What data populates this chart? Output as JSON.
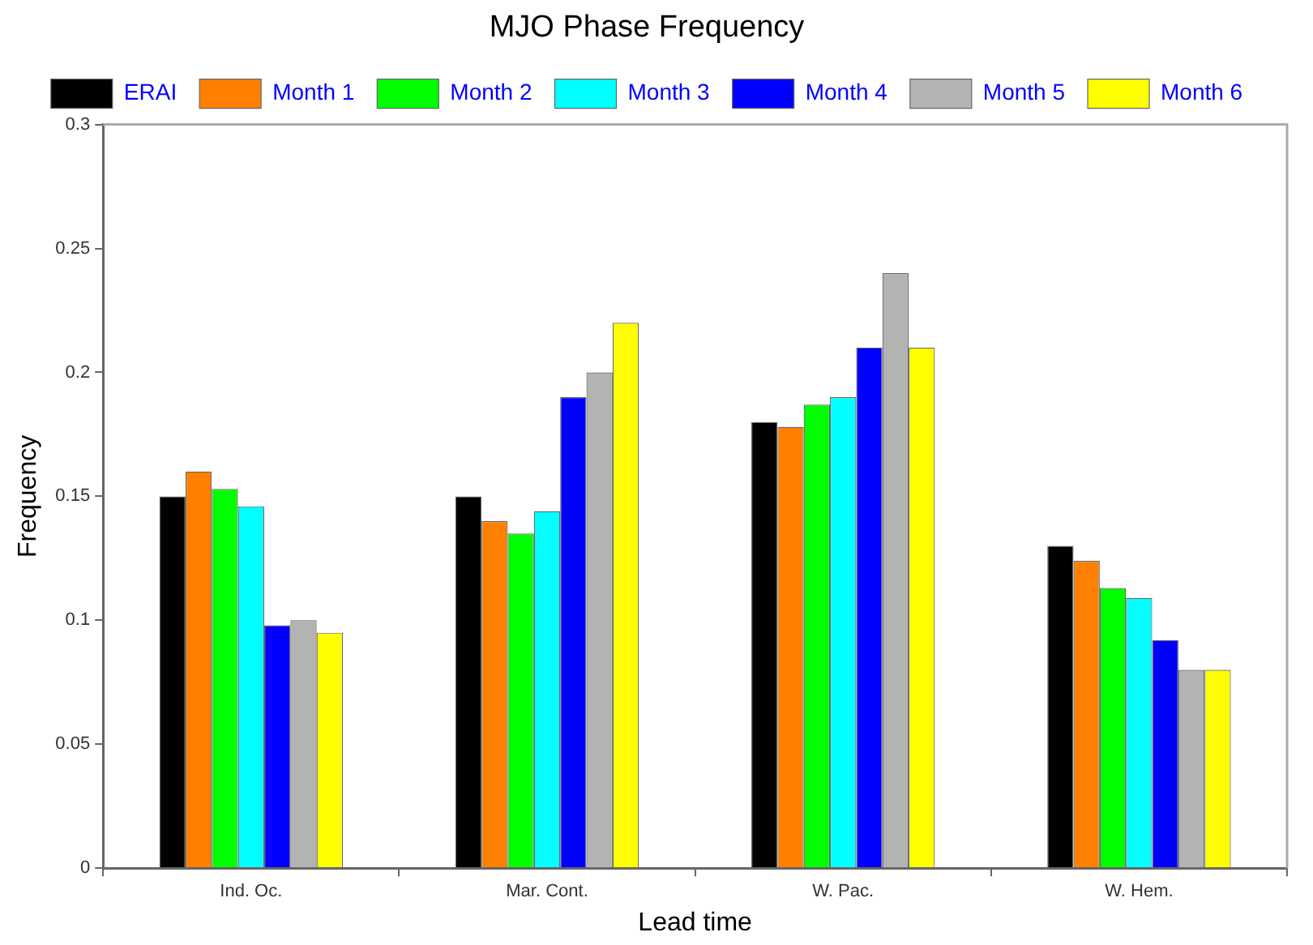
{
  "chart_data": {
    "type": "bar",
    "title": "MJO Phase Frequency",
    "xlabel": "Lead time",
    "ylabel": "Frequency",
    "categories": [
      "Ind. Oc.",
      "Mar. Cont.",
      "W. Pac.",
      "W. Hem."
    ],
    "series": [
      {
        "name": "ERAI",
        "color": "#000000",
        "values": [
          0.15,
          0.15,
          0.18,
          0.13
        ]
      },
      {
        "name": "Month 1",
        "color": "#ff8000",
        "values": [
          0.16,
          0.14,
          0.178,
          0.124
        ]
      },
      {
        "name": "Month 2",
        "color": "#00ff00",
        "values": [
          0.153,
          0.135,
          0.187,
          0.113
        ]
      },
      {
        "name": "Month 3",
        "color": "#00ffff",
        "values": [
          0.146,
          0.144,
          0.19,
          0.109
        ]
      },
      {
        "name": "Month 4",
        "color": "#0000ff",
        "values": [
          0.098,
          0.19,
          0.21,
          0.092
        ]
      },
      {
        "name": "Month 5",
        "color": "#b3b3b3",
        "values": [
          0.1,
          0.2,
          0.24,
          0.08
        ]
      },
      {
        "name": "Month 6",
        "color": "#ffff00",
        "values": [
          0.095,
          0.22,
          0.21,
          0.08
        ]
      }
    ],
    "ylim": [
      0,
      0.3
    ],
    "yticks": [
      0,
      0.05,
      0.1,
      0.15,
      0.2,
      0.25,
      0.3
    ],
    "grid": false,
    "legend": "top"
  }
}
